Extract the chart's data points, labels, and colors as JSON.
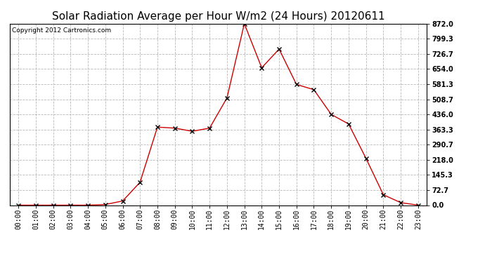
{
  "title": "Solar Radiation Average per Hour W/m2 (24 Hours) 20120611",
  "copyright_text": "Copyright 2012 Cartronics.com",
  "hours": [
    "00:00",
    "01:00",
    "02:00",
    "03:00",
    "04:00",
    "05:00",
    "06:00",
    "07:00",
    "08:00",
    "09:00",
    "10:00",
    "11:00",
    "12:00",
    "13:00",
    "14:00",
    "15:00",
    "16:00",
    "17:00",
    "18:00",
    "19:00",
    "20:00",
    "21:00",
    "22:00",
    "23:00"
  ],
  "solar_values": [
    0,
    0,
    0,
    0,
    0,
    3,
    20,
    110,
    375,
    370,
    355,
    370,
    515,
    872,
    660,
    750,
    580,
    555,
    436,
    390,
    225,
    50,
    12,
    0
  ],
  "line_color": "#cc0000",
  "marker": "x",
  "marker_color": "#000000",
  "bg_color": "#ffffff",
  "grid_color": "#b0b0b0",
  "yticks": [
    0.0,
    72.7,
    145.3,
    218.0,
    290.7,
    363.3,
    436.0,
    508.7,
    581.3,
    654.0,
    726.7,
    799.3,
    872.0
  ],
  "ylim": [
    0.0,
    872.0
  ],
  "title_fontsize": 11,
  "copyright_fontsize": 6.5,
  "tick_fontsize": 7,
  "ytick_fontsize": 7
}
